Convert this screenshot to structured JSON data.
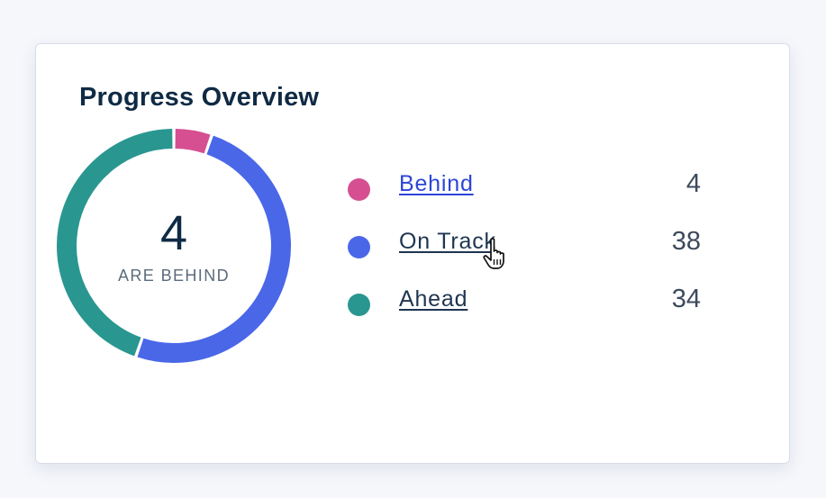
{
  "card": {
    "title": "Progress Overview"
  },
  "summary": {
    "number": "4",
    "caption": "ARE BEHIND"
  },
  "legend": [
    {
      "label": "Behind",
      "count": "4",
      "color": "#d64f91"
    },
    {
      "label": "On Track",
      "count": "38",
      "color": "#4a67e8"
    },
    {
      "label": "Ahead",
      "count": "34",
      "color": "#2a9690"
    }
  ],
  "chart_data": {
    "type": "pie",
    "categories": [
      "Behind",
      "On Track",
      "Ahead"
    ],
    "values": [
      4,
      38,
      34
    ],
    "colors": [
      "#d64f91",
      "#4a67e8",
      "#2a9690"
    ],
    "title": "Progress Overview"
  },
  "cursor": {
    "icon": "hand-pointer-icon"
  }
}
